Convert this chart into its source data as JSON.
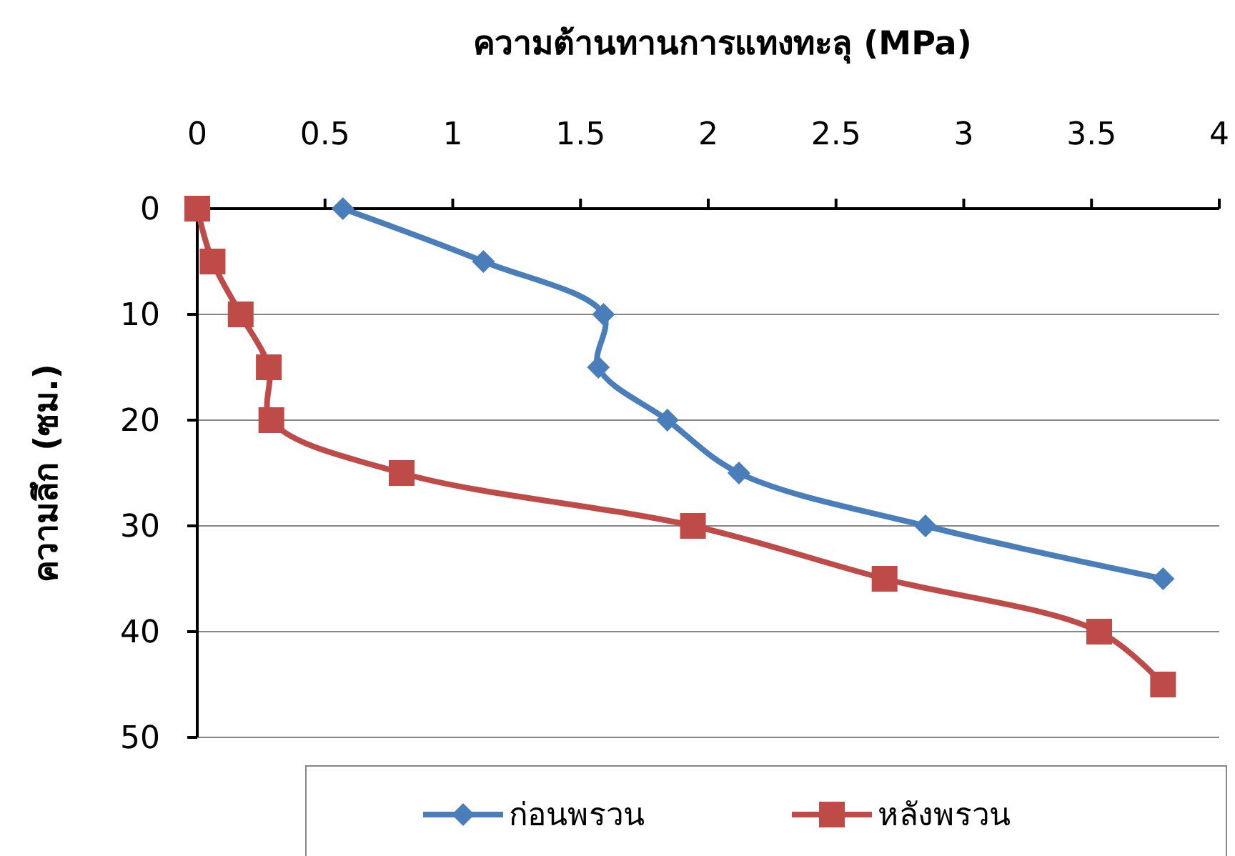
{
  "chart_data": {
    "type": "line",
    "xlabel": "ความต้านทานการแทงทะลุ (MPa)",
    "ylabel": "ความลึก (ซม.)",
    "xlim": [
      0,
      4
    ],
    "xticks": [
      0,
      0.5,
      1,
      1.5,
      2,
      2.5,
      3,
      3.5,
      4
    ],
    "ylim": [
      50,
      0
    ],
    "yticks": [
      0,
      10,
      20,
      30,
      40,
      50
    ],
    "grid": "y",
    "legend": "bottom",
    "series": [
      {
        "name": "ก่อนพรวน",
        "color": "#4a7ebb",
        "marker": "diamond",
        "x": [
          0.57,
          1.12,
          1.59,
          1.57,
          1.84,
          2.12,
          2.85,
          3.78
        ],
        "values": [
          0,
          5,
          10,
          15,
          20,
          25,
          30,
          35
        ]
      },
      {
        "name": "หลังพรวน",
        "color": "#be4b48",
        "marker": "square",
        "x": [
          0,
          0.06,
          0.17,
          0.28,
          0.29,
          0.8,
          1.94,
          2.69,
          3.53,
          3.78
        ],
        "values": [
          0,
          5,
          10,
          15,
          20,
          25,
          30,
          35,
          40,
          45
        ]
      }
    ]
  }
}
